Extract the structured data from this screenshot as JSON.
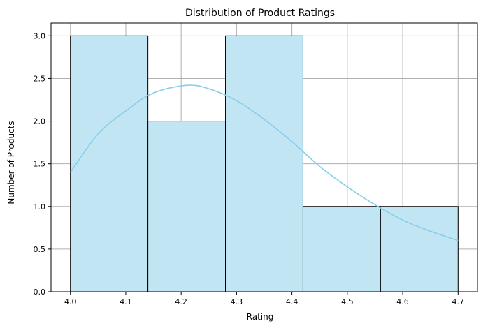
{
  "chart_data": {
    "type": "bar",
    "subtype": "histogram-with-kde",
    "title": "Distribution of Product Ratings",
    "xlabel": "Rating",
    "ylabel": "Number of Products",
    "bins": [
      {
        "start": 4.0,
        "end": 4.14,
        "count": 3
      },
      {
        "start": 4.14,
        "end": 4.28,
        "count": 2
      },
      {
        "start": 4.28,
        "end": 4.42,
        "count": 3
      },
      {
        "start": 4.42,
        "end": 4.56,
        "count": 1
      },
      {
        "start": 4.56,
        "end": 4.7,
        "count": 1
      }
    ],
    "kde": {
      "x": [
        4.0,
        4.05,
        4.1,
        4.15,
        4.21,
        4.25,
        4.3,
        4.35,
        4.4,
        4.45,
        4.5,
        4.55,
        4.6,
        4.65,
        4.7
      ],
      "y": [
        1.4,
        1.85,
        2.12,
        2.33,
        2.42,
        2.38,
        2.24,
        2.02,
        1.76,
        1.47,
        1.23,
        1.02,
        0.84,
        0.71,
        0.6
      ]
    },
    "xlim": [
      3.965,
      4.735
    ],
    "ylim": [
      0,
      3.15
    ],
    "xticks": [
      "4.0",
      "4.1",
      "4.2",
      "4.3",
      "4.4",
      "4.5",
      "4.6",
      "4.7"
    ],
    "yticks": [
      "0.0",
      "0.5",
      "1.0",
      "1.5",
      "2.0",
      "2.5",
      "3.0"
    ],
    "grid": true,
    "colors": {
      "bar_fill": "#c2e5f4",
      "bar_edge": "#000000",
      "kde_line": "#87ceeb",
      "grid": "#b0b0b0"
    }
  }
}
